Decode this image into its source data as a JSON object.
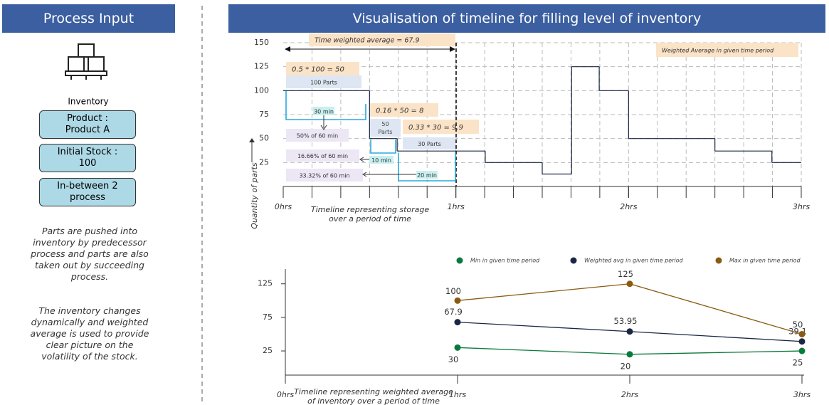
{
  "left_panel": {
    "title": "Process Input",
    "icon_label": "Inventory",
    "boxes": [
      "Product : Product A",
      "Initial Stock : 100",
      "In-between 2 process"
    ],
    "description": [
      "Parts are pushed into inventory by predecessor process and parts are also taken out by succeeding process.",
      "The inventory changes dynamically and weighted average is used to provide clear picture on the volatility of the stock."
    ]
  },
  "chart_data": [
    {
      "type": "step",
      "title": "Visualisation of timeline for filling level of inventory",
      "y_label": "Quantity of parts",
      "x_label": "Timeline representing storage over a period of time",
      "x": [
        0,
        0.5,
        0.66,
        1.17,
        1.5,
        1.67,
        1.83,
        2,
        2.5,
        2.83
      ],
      "values": [
        100,
        50,
        37,
        25,
        13,
        125,
        100,
        50,
        37,
        25
      ],
      "color": "#1a2744",
      "xlim": [
        0,
        3
      ],
      "xticks": [
        {
          "value": 0,
          "label": "0hrs"
        },
        {
          "value": 1,
          "label": "1hrs"
        },
        {
          "value": 2,
          "label": "2hrs"
        },
        {
          "value": 3,
          "label": "3hrs"
        }
      ],
      "ylim": [
        0,
        150
      ],
      "yticks": [
        25,
        50,
        75,
        100,
        125,
        150
      ],
      "grid": true,
      "annotations": [
        "Time weighted average = 67.9",
        "0.5 * 100 = 50",
        "100 Parts",
        "30 min",
        "50% of 60 min",
        "16.66% of 60 min",
        "33.32% of 60 min",
        "0.16 * 50 = 8",
        "50 Parts",
        "10 min",
        "0.33 * 30 = 9.9",
        "30 Parts",
        "20 min",
        "Weighted Average in given time period"
      ]
    },
    {
      "type": "line",
      "x_label": "Timeline representing weighted average of inventory over a period of time",
      "x": [
        1,
        2,
        3
      ],
      "series": [
        {
          "name": "Min in given time period",
          "color": "#0a7a3c",
          "values": [
            30,
            20,
            25
          ]
        },
        {
          "name": "Weighted avg in given time period",
          "color": "#1a2744",
          "values": [
            67.9,
            53.95,
            39.1
          ]
        },
        {
          "name": "Max in given time period",
          "color": "#8a5a10",
          "values": [
            100,
            125,
            50
          ]
        }
      ],
      "xlim": [
        0,
        3
      ],
      "xticks": [
        {
          "value": 0,
          "label": "0hrs"
        },
        {
          "value": 1,
          "label": "1hrs"
        },
        {
          "value": 2,
          "label": "2hrs"
        },
        {
          "value": 3,
          "label": "3hrs"
        }
      ],
      "ylim": [
        -11,
        147
      ],
      "yticks": [
        25,
        75,
        125
      ]
    }
  ]
}
